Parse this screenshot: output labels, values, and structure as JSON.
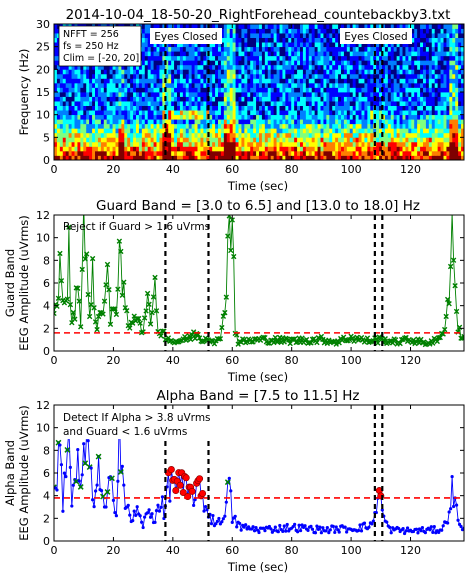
{
  "chart_data": [
    {
      "type": "heatmap",
      "title": "2014-10-04_18-50-20_RightForehead_countebackby3.txt",
      "xlabel": "Time (sec)",
      "ylabel": "Frequency (Hz)",
      "xlim": [
        0,
        138
      ],
      "ylim": [
        0,
        30
      ],
      "xticks": [
        0,
        20,
        40,
        60,
        80,
        100,
        120
      ],
      "yticks": [
        0,
        5,
        10,
        15,
        20,
        25,
        30
      ],
      "info_box": [
        "NFFT = 256",
        "fs = 250 Hz",
        "Clim = [-20, 20]"
      ],
      "event_labels": [
        {
          "text": "Eyes Closed",
          "x": 44
        },
        {
          "text": "Eyes Closed",
          "x": 118
        }
      ],
      "event_markers_sec": [
        37.5,
        52,
        108,
        110.5
      ],
      "colormap": [
        "#00007f",
        "#0000ff",
        "#007fff",
        "#00ffff",
        "#7fff7f",
        "#ffff00",
        "#ff7f00",
        "#ff0000",
        "#7f0000"
      ],
      "clim": [
        -20,
        20
      ]
    },
    {
      "type": "line",
      "title": "Guard Band = [3.0 to 6.5] and [13.0 to 18.0] Hz",
      "xlabel": "Time (sec)",
      "ylabel_line1": "Guard Band",
      "ylabel_line2": "EEG Amplitude (uVrms)",
      "xlim": [
        0,
        138
      ],
      "ylim": [
        0,
        12
      ],
      "xticks": [
        0,
        20,
        40,
        60,
        80,
        100,
        120
      ],
      "yticks": [
        0,
        2,
        4,
        6,
        8,
        10,
        12
      ],
      "annotation": "Reject if Guard > 1.6 uVrms",
      "threshold": 1.6,
      "threshold_color": "#ff0000",
      "series_color": "#008000",
      "event_markers_sec": [
        37.5,
        52,
        108,
        110.5
      ],
      "anchors": [
        [
          0,
          2.8
        ],
        [
          2,
          7.0
        ],
        [
          4,
          3.5
        ],
        [
          5,
          9.0
        ],
        [
          6,
          2.0
        ],
        [
          8,
          6.0
        ],
        [
          9,
          3.0
        ],
        [
          10,
          11.5
        ],
        [
          12,
          2.5
        ],
        [
          13,
          8.5
        ],
        [
          14,
          2.0
        ],
        [
          16,
          3.5
        ],
        [
          18,
          7.0
        ],
        [
          19,
          2.5
        ],
        [
          21,
          4.0
        ],
        [
          22,
          10.5
        ],
        [
          24,
          3.0
        ],
        [
          26,
          2.0
        ],
        [
          28,
          3.5
        ],
        [
          30,
          1.8
        ],
        [
          31,
          4.5
        ],
        [
          33,
          3.0
        ],
        [
          34,
          5.0
        ],
        [
          35,
          2.0
        ],
        [
          37,
          1.5
        ],
        [
          40,
          0.8
        ],
        [
          44,
          1.0
        ],
        [
          48,
          1.5
        ],
        [
          50,
          1.0
        ],
        [
          52,
          1.2
        ],
        [
          54,
          0.9
        ],
        [
          56,
          0.9
        ],
        [
          58,
          6.0
        ],
        [
          59,
          12.0
        ],
        [
          60,
          12.0
        ],
        [
          61,
          2.0
        ],
        [
          62,
          0.8
        ],
        [
          70,
          1.0
        ],
        [
          80,
          0.9
        ],
        [
          90,
          1.0
        ],
        [
          95,
          0.8
        ],
        [
          100,
          1.2
        ],
        [
          105,
          0.9
        ],
        [
          110,
          1.0
        ],
        [
          115,
          0.8
        ],
        [
          120,
          1.0
        ],
        [
          125,
          0.7
        ],
        [
          130,
          1.0
        ],
        [
          132,
          3.0
        ],
        [
          133,
          5.5
        ],
        [
          134,
          10.5
        ],
        [
          135,
          6.0
        ],
        [
          136,
          2.0
        ],
        [
          138,
          1.0
        ]
      ]
    },
    {
      "type": "line",
      "title": "Alpha Band = [7.5 to 11.5] Hz",
      "xlabel": "Time (sec)",
      "ylabel_line1": "Alpha Band",
      "ylabel_line2": "EEG Amplitude (uVrms)",
      "xlim": [
        0,
        138
      ],
      "ylim": [
        0,
        12
      ],
      "xticks": [
        0,
        20,
        40,
        60,
        80,
        100,
        120
      ],
      "yticks": [
        0,
        2,
        4,
        6,
        8,
        10,
        12
      ],
      "annotation_line1": "Detect If Alpha > 3.8 uVrms",
      "annotation_line2": "and Guard < 1.6 uVrms",
      "threshold": 3.8,
      "threshold_color": "#ff0000",
      "series_color": "#0000ff",
      "event_markers_sec": [
        37.5,
        52,
        108,
        110.5
      ],
      "anchors": [
        [
          0,
          4.5
        ],
        [
          2,
          8.0
        ],
        [
          3,
          3.5
        ],
        [
          5,
          10.5
        ],
        [
          6,
          3.0
        ],
        [
          8,
          7.0
        ],
        [
          9,
          4.0
        ],
        [
          11,
          9.5
        ],
        [
          13,
          3.5
        ],
        [
          15,
          6.0
        ],
        [
          17,
          2.5
        ],
        [
          19,
          5.0
        ],
        [
          21,
          3.0
        ],
        [
          22,
          10.5
        ],
        [
          24,
          3.0
        ],
        [
          26,
          2.0
        ],
        [
          28,
          2.5
        ],
        [
          30,
          1.5
        ],
        [
          32,
          2.5
        ],
        [
          34,
          2.0
        ],
        [
          36,
          4.0
        ],
        [
          37,
          2.0
        ],
        [
          38,
          4.5
        ],
        [
          40,
          5.5
        ],
        [
          42,
          5.0
        ],
        [
          44,
          4.5
        ],
        [
          46,
          4.0
        ],
        [
          48,
          4.5
        ],
        [
          50,
          4.0
        ],
        [
          51,
          3.0
        ],
        [
          53,
          2.0
        ],
        [
          56,
          1.5
        ],
        [
          58,
          3.5
        ],
        [
          59,
          5.0
        ],
        [
          60,
          2.0
        ],
        [
          63,
          1.2
        ],
        [
          70,
          1.0
        ],
        [
          80,
          1.2
        ],
        [
          90,
          1.0
        ],
        [
          100,
          1.1
        ],
        [
          106,
          1.3
        ],
        [
          108,
          2.0
        ],
        [
          109,
          4.8
        ],
        [
          110,
          3.5
        ],
        [
          111,
          2.0
        ],
        [
          113,
          1.0
        ],
        [
          120,
          0.9
        ],
        [
          130,
          1.0
        ],
        [
          132,
          1.5
        ],
        [
          134,
          4.5
        ],
        [
          136,
          2.0
        ],
        [
          138,
          1.0
        ]
      ]
    }
  ]
}
